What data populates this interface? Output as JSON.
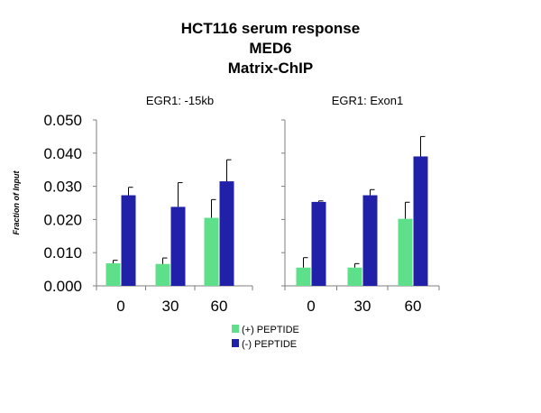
{
  "title_lines": [
    "HCT116 serum response",
    "MED6",
    "Matrix-ChIP"
  ],
  "chart_data": {
    "type": "bar",
    "ylabel": "Fraction of Input",
    "ylim": [
      0,
      0.05
    ],
    "yticks": [
      "0.000",
      "0.010",
      "0.020",
      "0.030",
      "0.040",
      "0.050"
    ],
    "categories": [
      "0",
      "30",
      "60"
    ],
    "series_names": [
      "(+) PEPTIDE",
      "(-) PEPTIDE"
    ],
    "series_colors": [
      "#5ee08a",
      "#2020a8"
    ],
    "legend_position": "bottom",
    "panels": [
      {
        "title": "EGR1: -15kb",
        "series": [
          {
            "name": "(+) PEPTIDE",
            "values": [
              0.0068,
              0.0066,
              0.0205
            ],
            "errors": [
              0.0009,
              0.0018,
              0.0055
            ]
          },
          {
            "name": "(-) PEPTIDE",
            "values": [
              0.0273,
              0.0238,
              0.0315
            ],
            "errors": [
              0.0024,
              0.0073,
              0.0065
            ]
          }
        ]
      },
      {
        "title": "EGR1: Exon1",
        "series": [
          {
            "name": "(+) PEPTIDE",
            "values": [
              0.0055,
              0.0055,
              0.0202
            ],
            "errors": [
              0.003,
              0.0012,
              0.005
            ]
          },
          {
            "name": "(-) PEPTIDE",
            "values": [
              0.0253,
              0.0273,
              0.039
            ],
            "errors": [
              0.0003,
              0.0017,
              0.006
            ]
          }
        ]
      }
    ]
  }
}
